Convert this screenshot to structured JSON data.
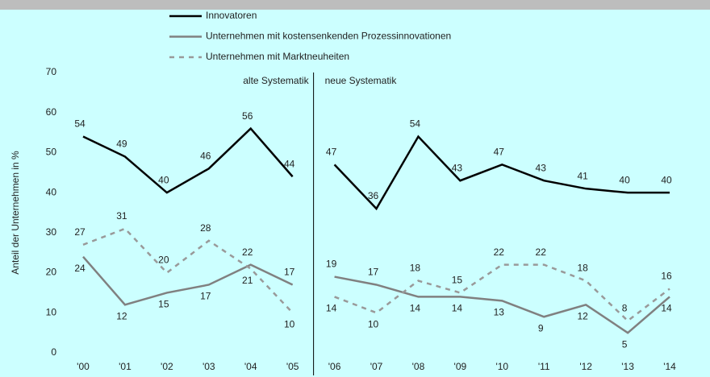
{
  "chart_data": {
    "type": "line",
    "categories": [
      "'00",
      "'01",
      "'02",
      "'03",
      "'04",
      "'05",
      "'06",
      "'07",
      "'08",
      "'09",
      "'10",
      "'11",
      "'12",
      "'13",
      "'14"
    ],
    "series": [
      {
        "name": "Innovatoren",
        "color": "#000000",
        "dash": false,
        "values": [
          54,
          49,
          40,
          46,
          56,
          44,
          47,
          36,
          54,
          43,
          47,
          43,
          41,
          40,
          40
        ]
      },
      {
        "name": "Unternehmen mit kostensenkenden Prozessinnovationen",
        "color": "#808080",
        "dash": false,
        "values": [
          24,
          12,
          15,
          17,
          22,
          17,
          19,
          17,
          14,
          14,
          13,
          9,
          12,
          5,
          14
        ]
      },
      {
        "name": "Unternehmen mit Marktneuheiten",
        "color": "#999999",
        "dash": true,
        "values": [
          27,
          31,
          20,
          28,
          21,
          10,
          14,
          10,
          18,
          15,
          22,
          22,
          18,
          8,
          16
        ]
      }
    ],
    "ylabel": "Anteil der Unternehmen in %",
    "ylim": [
      0,
      70
    ],
    "yticks": [
      0,
      10,
      20,
      30,
      40,
      50,
      60,
      70
    ],
    "annotations": [
      "alte Systematik",
      "neue Systematik"
    ],
    "break_after_index": 5
  }
}
